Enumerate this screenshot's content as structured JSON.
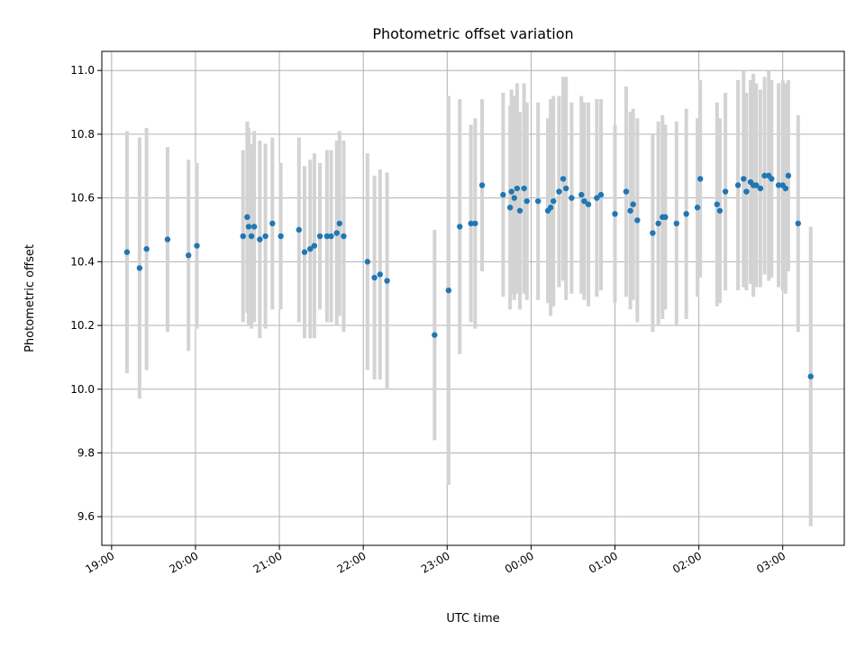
{
  "chart_data": {
    "type": "scatter",
    "title": "Photometric offset variation",
    "xlabel": "UTC time",
    "ylabel": "Photometric offset",
    "x_tick_labels": [
      "19:00",
      "20:00",
      "21:00",
      "22:00",
      "23:00",
      "00:00",
      "01:00",
      "02:00",
      "03:00"
    ],
    "y_ticks": [
      9.6,
      9.8,
      10.0,
      10.2,
      10.4,
      10.6,
      10.8,
      11.0
    ],
    "y_tick_labels": [
      "9.6",
      "9.8",
      "10.0",
      "10.2",
      "10.4",
      "10.6",
      "10.8",
      "11.0"
    ],
    "xlim": [
      "18:53",
      "03:44"
    ],
    "ylim": [
      9.51,
      11.06
    ],
    "grid": true,
    "point_color": "#1f77b4",
    "errorbar_color": "#d3d3d3",
    "series": [
      {
        "x": [
          "19:11",
          "19:20",
          "19:25",
          "19:40",
          "19:55",
          "20:01",
          "20:34",
          "20:37",
          "20:38",
          "20:40",
          "20:42",
          "20:46",
          "20:50",
          "20:55",
          "21:01",
          "21:14",
          "21:18",
          "21:22",
          "21:25",
          "21:29",
          "21:34",
          "21:37",
          "21:41",
          "21:43",
          "21:46",
          "22:03",
          "22:08",
          "22:12",
          "22:17",
          "22:51",
          "23:01",
          "23:09",
          "23:17",
          "23:20",
          "23:25",
          "23:40",
          "23:45",
          "23:46",
          "23:48",
          "23:50",
          "23:52",
          "23:55",
          "23:57",
          "00:05",
          "00:12",
          "00:14",
          "00:16",
          "00:20",
          "00:23",
          "00:25",
          "00:29",
          "00:36",
          "00:38",
          "00:41",
          "00:47",
          "00:50",
          "01:00",
          "01:08",
          "01:11",
          "01:13",
          "01:16",
          "01:27",
          "01:31",
          "01:34",
          "01:36",
          "01:44",
          "01:51",
          "01:59",
          "02:01",
          "02:13",
          "02:15",
          "02:19",
          "02:28",
          "02:32",
          "02:34",
          "02:37",
          "02:39",
          "02:41",
          "02:44",
          "02:47",
          "02:50",
          "02:52",
          "02:57",
          "03:00",
          "03:02",
          "03:04",
          "03:11",
          "03:20"
        ],
        "y": [
          10.43,
          10.38,
          10.44,
          10.47,
          10.42,
          10.45,
          10.48,
          10.54,
          10.51,
          10.48,
          10.51,
          10.47,
          10.48,
          10.52,
          10.48,
          10.5,
          10.43,
          10.44,
          10.45,
          10.48,
          10.48,
          10.48,
          10.49,
          10.52,
          10.48,
          10.4,
          10.35,
          10.36,
          10.34,
          10.17,
          10.31,
          10.51,
          10.52,
          10.52,
          10.64,
          10.61,
          10.57,
          10.62,
          10.6,
          10.63,
          10.56,
          10.63,
          10.59,
          10.59,
          10.56,
          10.57,
          10.59,
          10.62,
          10.66,
          10.63,
          10.6,
          10.61,
          10.59,
          10.58,
          10.6,
          10.61,
          10.55,
          10.62,
          10.56,
          10.58,
          10.53,
          10.49,
          10.52,
          10.54,
          10.54,
          10.52,
          10.55,
          10.57,
          10.66,
          10.58,
          10.56,
          10.62,
          10.64,
          10.66,
          10.62,
          10.65,
          10.64,
          10.64,
          10.63,
          10.67,
          10.67,
          10.66,
          10.64,
          10.64,
          10.63,
          10.67,
          10.52,
          10.04
        ],
        "err": [
          0.38,
          0.41,
          0.38,
          0.29,
          0.3,
          0.26,
          0.27,
          0.3,
          0.31,
          0.29,
          0.3,
          0.31,
          0.29,
          0.27,
          0.23,
          0.29,
          0.27,
          0.28,
          0.29,
          0.23,
          0.27,
          0.27,
          0.29,
          0.29,
          0.3,
          0.34,
          0.32,
          0.33,
          0.34,
          0.33,
          0.61,
          0.4,
          0.31,
          0.33,
          0.27,
          0.32,
          0.32,
          0.32,
          0.32,
          0.33,
          0.31,
          0.33,
          0.31,
          0.31,
          0.29,
          0.34,
          0.33,
          0.3,
          0.32,
          0.35,
          0.3,
          0.31,
          0.31,
          0.32,
          0.31,
          0.3,
          0.28,
          0.33,
          0.31,
          0.3,
          0.32,
          0.31,
          0.32,
          0.32,
          0.29,
          0.32,
          0.33,
          0.28,
          0.31,
          0.32,
          0.29,
          0.31,
          0.33,
          0.34,
          0.31,
          0.32,
          0.35,
          0.32,
          0.31,
          0.31,
          0.33,
          0.31,
          0.32,
          0.33,
          0.33,
          0.3,
          0.34,
          0.47
        ]
      }
    ]
  }
}
